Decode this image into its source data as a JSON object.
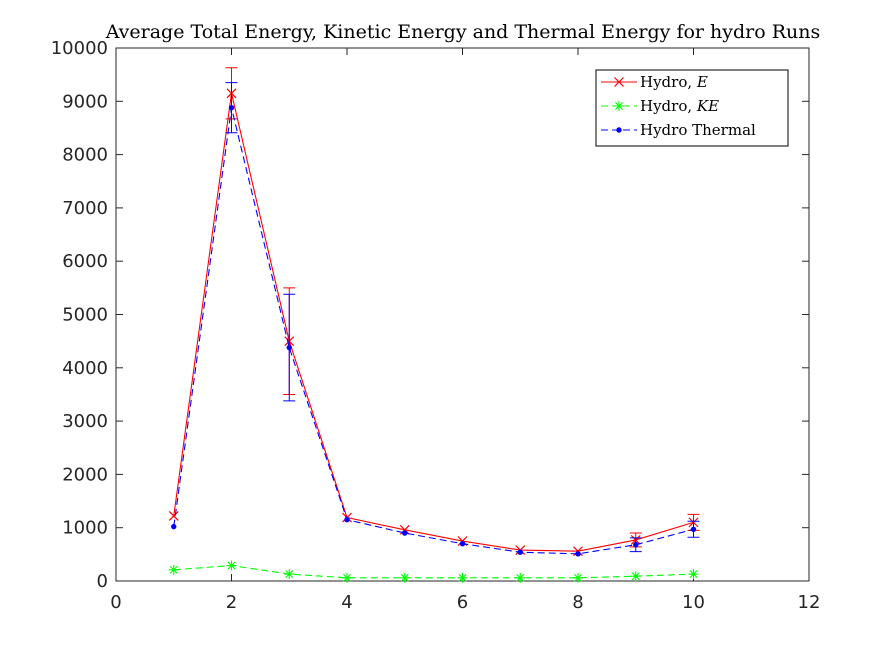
{
  "chart_data": {
    "type": "line",
    "title": "Average Total Energy, Kinetic Energy and Thermal Energy for hydro Runs",
    "xlabel": "",
    "ylabel": "",
    "xlim": [
      0,
      12
    ],
    "ylim": [
      0,
      10000
    ],
    "xticks": [
      0,
      2,
      4,
      6,
      8,
      10,
      12
    ],
    "yticks": [
      0,
      1000,
      2000,
      3000,
      4000,
      5000,
      6000,
      7000,
      8000,
      9000,
      10000
    ],
    "grid": false,
    "legend_position": "top-right",
    "x": [
      1,
      2,
      3,
      4,
      5,
      6,
      7,
      8,
      9,
      10
    ],
    "series": [
      {
        "name_prefix": "Hydro, ",
        "name_symbol": "E",
        "color": "#ff0000",
        "line_style": "solid",
        "marker": "x",
        "values": [
          1220,
          9150,
          4500,
          1190,
          960,
          750,
          580,
          560,
          770,
          1100
        ],
        "error": [
          0,
          480,
          1000,
          0,
          0,
          0,
          0,
          0,
          130,
          150
        ]
      },
      {
        "name_prefix": "Hydro, ",
        "name_symbol": "KE",
        "color": "#00ff00",
        "line_style": "dashed",
        "marker": "*",
        "values": [
          210,
          290,
          130,
          60,
          60,
          60,
          60,
          60,
          90,
          130
        ],
        "error": [
          0,
          0,
          0,
          0,
          0,
          0,
          0,
          0,
          0,
          0
        ]
      },
      {
        "name_prefix": "Hydro Thermal",
        "name_symbol": "",
        "color": "#0000ff",
        "line_style": "dashed",
        "marker": ".",
        "values": [
          1020,
          8880,
          4380,
          1150,
          900,
          700,
          540,
          510,
          680,
          970
        ],
        "error": [
          0,
          470,
          1000,
          0,
          0,
          0,
          0,
          0,
          130,
          150
        ]
      }
    ]
  }
}
